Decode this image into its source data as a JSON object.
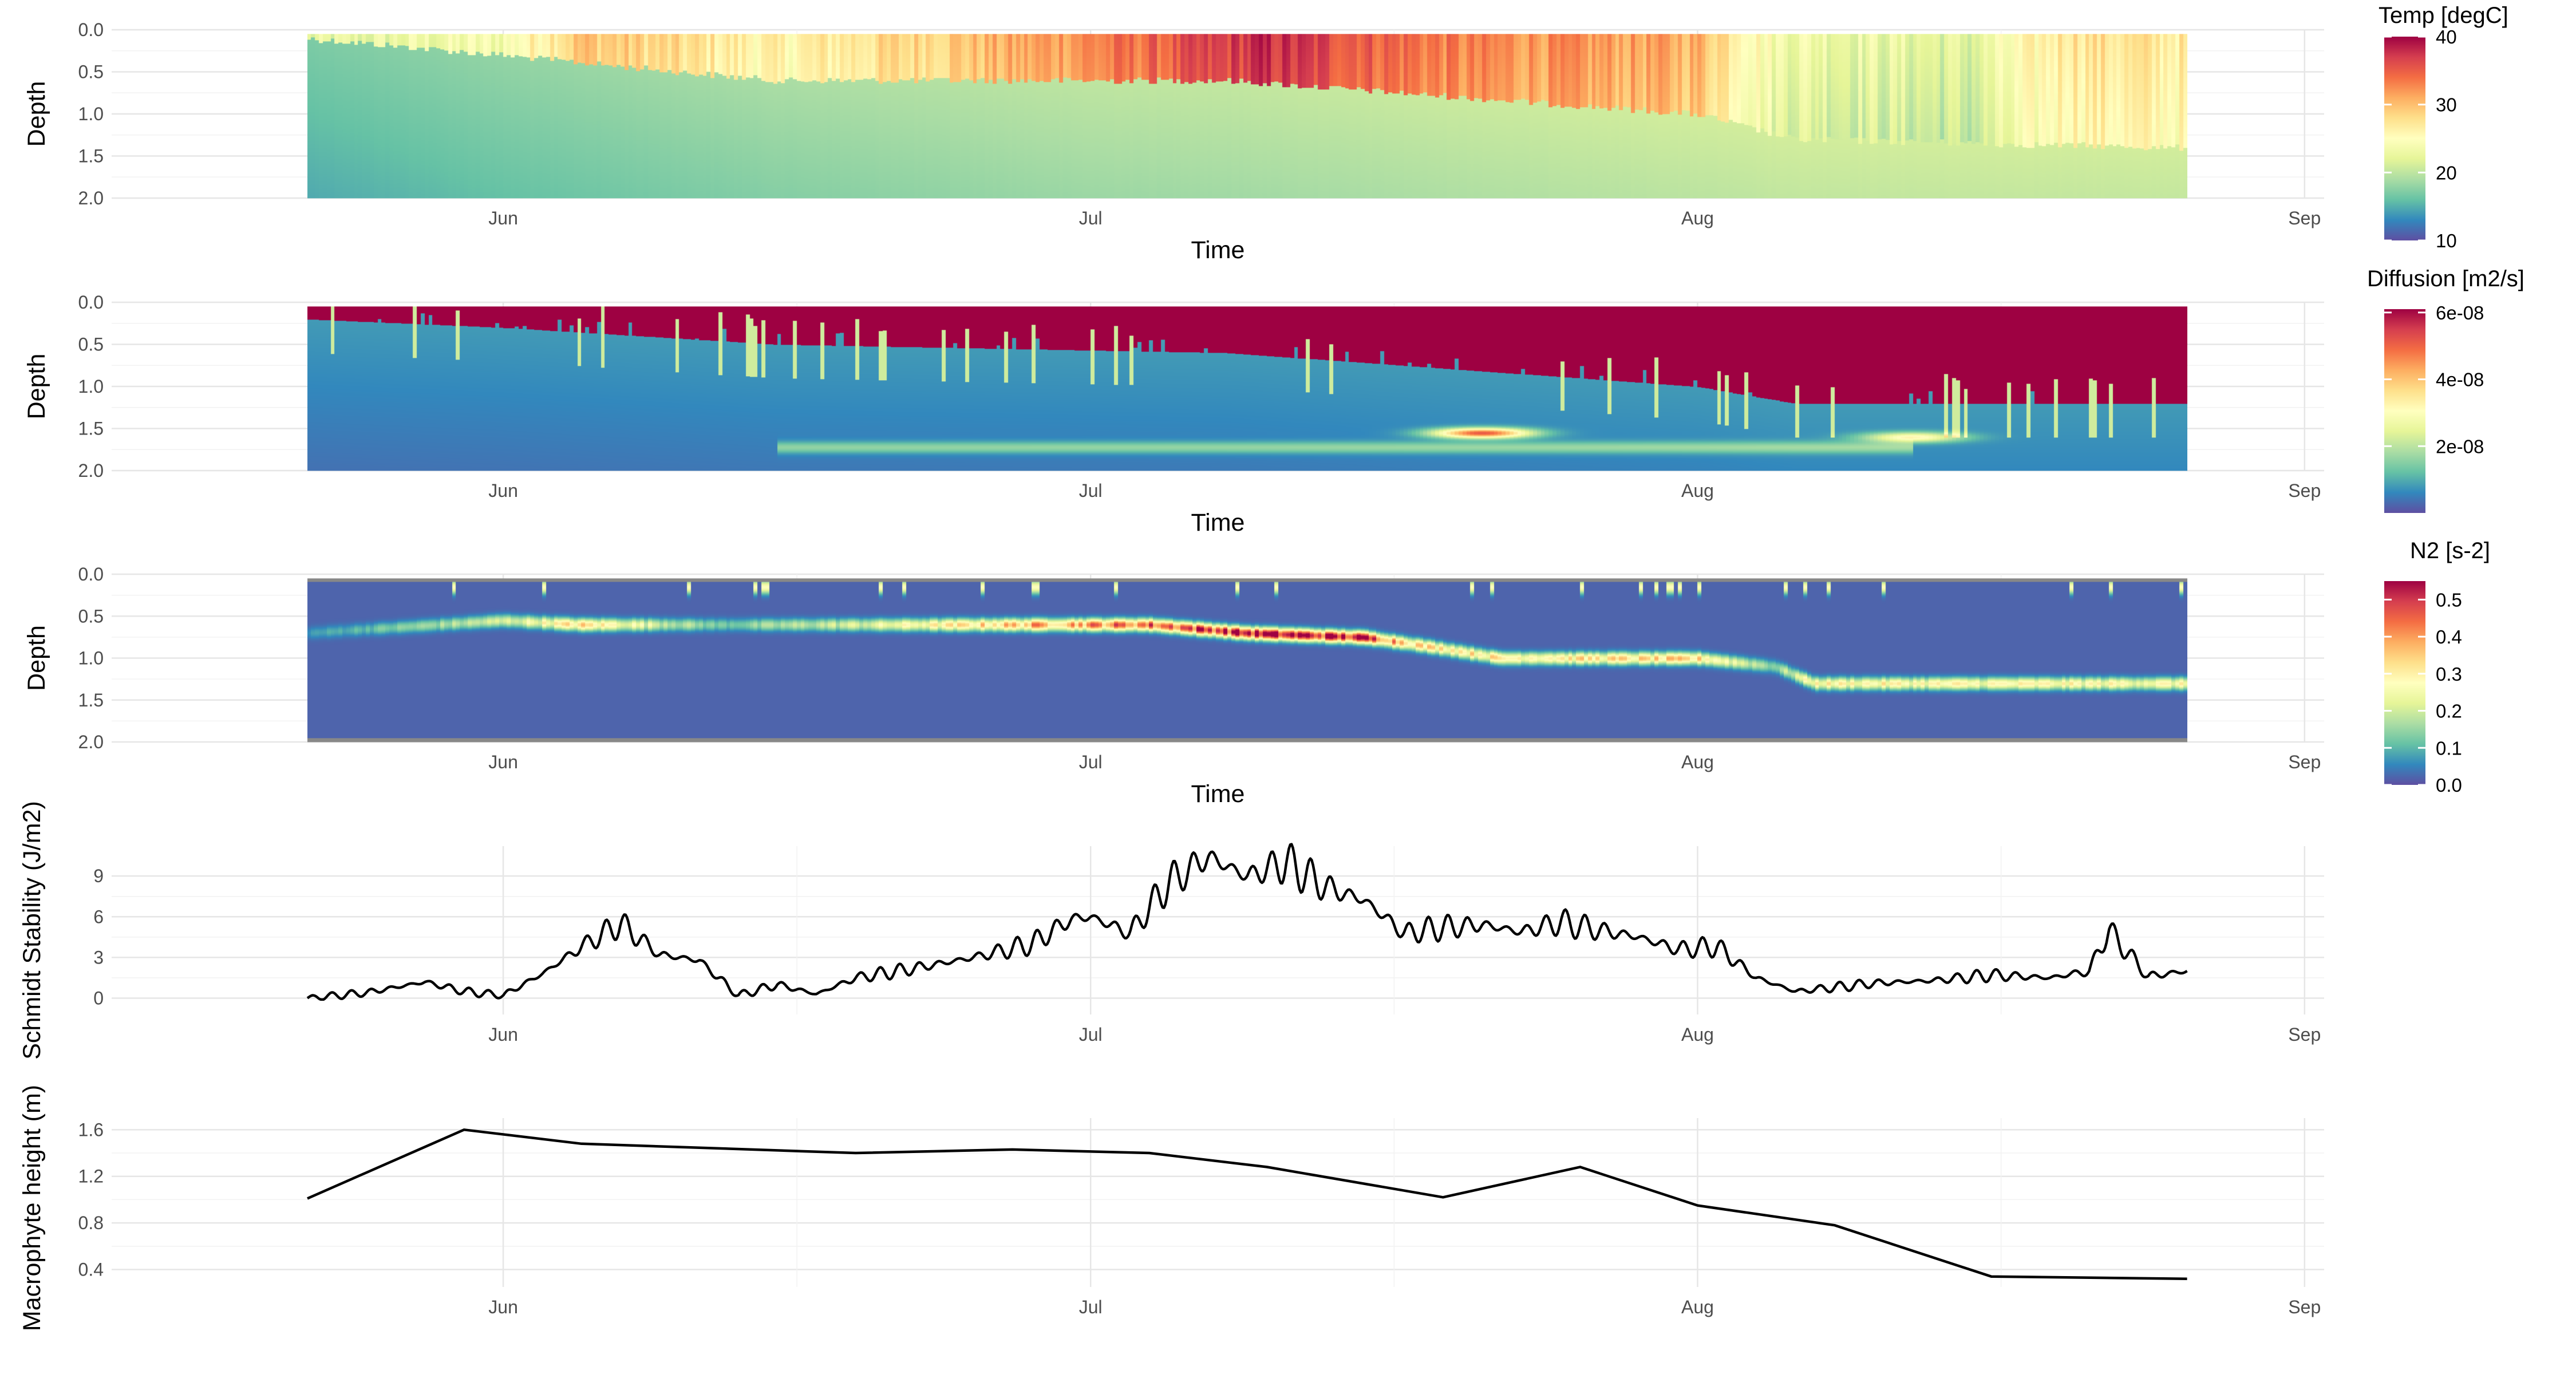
{
  "chart_data": [
    {
      "type": "heatmap",
      "xlabel": "Time",
      "ylabel": "Depth",
      "x_range": [
        "2021-05-12",
        "2021-09-02"
      ],
      "x_ticks": [
        {
          "date": "2021-06-01",
          "label": "Jun"
        },
        {
          "date": "2021-07-01",
          "label": "Jul"
        },
        {
          "date": "2021-08-01",
          "label": "Aug"
        },
        {
          "date": "2021-09-01",
          "label": "Sep"
        }
      ],
      "x_data_range": [
        "2021-05-22",
        "2021-08-26"
      ],
      "y_range": [
        0,
        2
      ],
      "y_reversed": true,
      "y_ticks": [
        "0.0",
        "0.5",
        "1.0",
        "1.5",
        "2.0"
      ],
      "legend_title": "Temp [degC]",
      "legend_ticks": [
        "40",
        "30",
        "20",
        "10"
      ],
      "legend_values": [
        40,
        30,
        20,
        10
      ],
      "color_range": [
        10,
        40
      ],
      "colormap": "Spectral",
      "grid": true,
      "surface_layer_bottom": [
        {
          "date": "2021-05-22",
          "depth": 0.1
        },
        {
          "date": "2021-06-01",
          "depth": 0.3
        },
        {
          "date": "2021-06-10",
          "depth": 0.5
        },
        {
          "date": "2021-06-15",
          "depth": 0.6
        },
        {
          "date": "2021-06-30",
          "depth": 0.6
        },
        {
          "date": "2021-07-08",
          "depth": 0.6
        },
        {
          "date": "2021-07-20",
          "depth": 0.8
        },
        {
          "date": "2021-08-01",
          "depth": 1.0
        },
        {
          "date": "2021-08-06",
          "depth": 1.3
        },
        {
          "date": "2021-08-26",
          "depth": 1.4
        }
      ],
      "surface_temperature": [
        {
          "date": "2021-05-22",
          "value": 22
        },
        {
          "date": "2021-06-01",
          "value": 24
        },
        {
          "date": "2021-06-05",
          "value": 30
        },
        {
          "date": "2021-06-15",
          "value": 26
        },
        {
          "date": "2021-06-25",
          "value": 30
        },
        {
          "date": "2021-07-05",
          "value": 35
        },
        {
          "date": "2021-07-10",
          "value": 38
        },
        {
          "date": "2021-07-20",
          "value": 33
        },
        {
          "date": "2021-08-01",
          "value": 31
        },
        {
          "date": "2021-08-05",
          "value": 24
        },
        {
          "date": "2021-08-15",
          "value": 22
        },
        {
          "date": "2021-08-20",
          "value": 28
        },
        {
          "date": "2021-08-26",
          "value": 27
        }
      ],
      "bottom_temperature": [
        {
          "date": "2021-05-22",
          "value": 17
        },
        {
          "date": "2021-06-01",
          "value": 18
        },
        {
          "date": "2021-06-15",
          "value": 19
        },
        {
          "date": "2021-07-01",
          "value": 20
        },
        {
          "date": "2021-08-01",
          "value": 21
        },
        {
          "date": "2021-08-26",
          "value": 21
        }
      ]
    },
    {
      "type": "heatmap",
      "xlabel": "Time",
      "ylabel": "Depth",
      "x_range": [
        "2021-05-12",
        "2021-09-02"
      ],
      "x_ticks": [
        {
          "date": "2021-06-01",
          "label": "Jun"
        },
        {
          "date": "2021-07-01",
          "label": "Jul"
        },
        {
          "date": "2021-08-01",
          "label": "Aug"
        },
        {
          "date": "2021-09-01",
          "label": "Sep"
        }
      ],
      "x_data_range": [
        "2021-05-22",
        "2021-08-26"
      ],
      "y_range": [
        0,
        2
      ],
      "y_reversed": true,
      "y_ticks": [
        "0.0",
        "0.5",
        "1.0",
        "1.5",
        "2.0"
      ],
      "legend_title": "Diffusion [m2/s]",
      "legend_ticks": [
        "6e-08",
        "4e-08",
        "2e-08"
      ],
      "legend_values": [
        6e-08,
        4e-08,
        2e-08
      ],
      "color_range": [
        0,
        6.1e-08
      ],
      "colormap": "Spectral",
      "grid": true,
      "mixed_layer_bottom": [
        {
          "date": "2021-05-22",
          "depth": 0.2
        },
        {
          "date": "2021-06-01",
          "depth": 0.3
        },
        {
          "date": "2021-06-15",
          "depth": 0.5
        },
        {
          "date": "2021-07-08",
          "depth": 0.6
        },
        {
          "date": "2021-07-20",
          "depth": 0.8
        },
        {
          "date": "2021-08-01",
          "depth": 1.0
        },
        {
          "date": "2021-08-06",
          "depth": 1.2
        },
        {
          "date": "2021-08-26",
          "depth": 1.2
        }
      ],
      "deep_diffusion": 8e-09,
      "hotspots": [
        {
          "date": "2021-07-21",
          "depth": 1.55,
          "value": 4.5e-08
        },
        {
          "date": "2021-08-12",
          "depth": 1.6,
          "value": 2.5e-08
        }
      ]
    },
    {
      "type": "heatmap",
      "xlabel": "Time",
      "ylabel": "Depth",
      "x_range": [
        "2021-05-12",
        "2021-09-02"
      ],
      "x_ticks": [
        {
          "date": "2021-06-01",
          "label": "Jun"
        },
        {
          "date": "2021-07-01",
          "label": "Jul"
        },
        {
          "date": "2021-08-01",
          "label": "Aug"
        },
        {
          "date": "2021-09-01",
          "label": "Sep"
        }
      ],
      "x_data_range": [
        "2021-05-22",
        "2021-08-26"
      ],
      "y_range": [
        0,
        2
      ],
      "y_reversed": true,
      "y_ticks": [
        "0.0",
        "0.5",
        "1.0",
        "1.5",
        "2.0"
      ],
      "legend_title": "N2 [s-2]",
      "legend_ticks": [
        "0.5",
        "0.4",
        "0.3",
        "0.2",
        "0.1",
        "0.0"
      ],
      "legend_values": [
        0.5,
        0.4,
        0.3,
        0.2,
        0.1,
        0.0
      ],
      "color_range": [
        0,
        0.55
      ],
      "colormap": "Spectral",
      "grid": true,
      "stratification_band": [
        {
          "date": "2021-05-22",
          "depth": 0.7,
          "value": 0.05
        },
        {
          "date": "2021-06-01",
          "depth": 0.55,
          "value": 0.18
        },
        {
          "date": "2021-06-05",
          "depth": 0.6,
          "value": 0.3
        },
        {
          "date": "2021-06-12",
          "depth": 0.6,
          "value": 0.1
        },
        {
          "date": "2021-06-20",
          "depth": 0.6,
          "value": 0.2
        },
        {
          "date": "2021-06-28",
          "depth": 0.6,
          "value": 0.35
        },
        {
          "date": "2021-07-04",
          "depth": 0.6,
          "value": 0.42
        },
        {
          "date": "2021-07-09",
          "depth": 0.7,
          "value": 0.52
        },
        {
          "date": "2021-07-15",
          "depth": 0.75,
          "value": 0.48
        },
        {
          "date": "2021-07-18",
          "depth": 0.85,
          "value": 0.3
        },
        {
          "date": "2021-07-22",
          "depth": 1.0,
          "value": 0.28
        },
        {
          "date": "2021-08-01",
          "depth": 1.0,
          "value": 0.3
        },
        {
          "date": "2021-08-05",
          "depth": 1.1,
          "value": 0.12
        },
        {
          "date": "2021-08-07",
          "depth": 1.3,
          "value": 0.26
        },
        {
          "date": "2021-08-26",
          "depth": 1.3,
          "value": 0.24
        }
      ]
    },
    {
      "type": "line",
      "xlabel": "",
      "ylabel": "Schmidt Stability (J/m2)",
      "x_range": [
        "2021-05-12",
        "2021-09-02"
      ],
      "x_ticks": [
        {
          "date": "2021-06-01",
          "label": "Jun"
        },
        {
          "date": "2021-07-01",
          "label": "Jul"
        },
        {
          "date": "2021-08-01",
          "label": "Aug"
        },
        {
          "date": "2021-09-01",
          "label": "Sep"
        }
      ],
      "y_range": [
        -1.2,
        11.2
      ],
      "y_ticks": [
        {
          "value": 0,
          "label": "0"
        },
        {
          "value": 3,
          "label": "3"
        },
        {
          "value": 6,
          "label": "6"
        },
        {
          "value": 9,
          "label": "9"
        }
      ],
      "grid": true,
      "series": [
        {
          "x": [
            "2021-05-22",
            "2021-05-25",
            "2021-05-28",
            "2021-05-30",
            "2021-06-01",
            "2021-06-03",
            "2021-06-05",
            "2021-06-07",
            "2021-06-09",
            "2021-06-11",
            "2021-06-13",
            "2021-06-15",
            "2021-06-17",
            "2021-06-19",
            "2021-06-22",
            "2021-06-25",
            "2021-06-28",
            "2021-06-30",
            "2021-07-01",
            "2021-07-03",
            "2021-07-05",
            "2021-07-07",
            "2021-07-09",
            "2021-07-11",
            "2021-07-13",
            "2021-07-15",
            "2021-07-17",
            "2021-07-19",
            "2021-07-21",
            "2021-07-23",
            "2021-07-25",
            "2021-07-27",
            "2021-07-29",
            "2021-07-31",
            "2021-08-02",
            "2021-08-04",
            "2021-08-06",
            "2021-08-08",
            "2021-08-10",
            "2021-08-13",
            "2021-08-16",
            "2021-08-19",
            "2021-08-21",
            "2021-08-22",
            "2021-08-24",
            "2021-08-26"
          ],
          "y": [
            0.0,
            0.4,
            1.2,
            0.5,
            0.2,
            1.8,
            3.8,
            5.5,
            3.2,
            2.8,
            0.2,
            1.0,
            0.3,
            1.5,
            2.2,
            3.0,
            4.0,
            5.8,
            6.0,
            4.8,
            8.5,
            10.4,
            9.0,
            10.0,
            8.2,
            7.2,
            4.8,
            5.2,
            5.4,
            4.9,
            5.6,
            5.0,
            4.5,
            3.6,
            3.8,
            1.5,
            0.5,
            0.8,
            1.1,
            1.3,
            1.7,
            1.5,
            2.0,
            5.0,
            1.6,
            2.0
          ]
        }
      ]
    },
    {
      "type": "line",
      "xlabel": "",
      "ylabel": "Macrophyte height (m)",
      "x_range": [
        "2021-05-12",
        "2021-09-02"
      ],
      "x_ticks": [
        {
          "date": "2021-06-01",
          "label": "Jun"
        },
        {
          "date": "2021-07-01",
          "label": "Jul"
        },
        {
          "date": "2021-08-01",
          "label": "Aug"
        },
        {
          "date": "2021-09-01",
          "label": "Sep"
        }
      ],
      "y_range": [
        0.25,
        1.7
      ],
      "y_ticks": [
        {
          "value": 0.4,
          "label": "0.4"
        },
        {
          "value": 0.8,
          "label": "0.8"
        },
        {
          "value": 1.2,
          "label": "1.2"
        },
        {
          "value": 1.6,
          "label": "1.6"
        }
      ],
      "grid": true,
      "series": [
        {
          "x": [
            "2021-05-22",
            "2021-05-30",
            "2021-06-05",
            "2021-06-19",
            "2021-06-27",
            "2021-07-04",
            "2021-07-10",
            "2021-07-19",
            "2021-07-26",
            "2021-08-01",
            "2021-08-08",
            "2021-08-16",
            "2021-08-26"
          ],
          "y": [
            1.01,
            1.6,
            1.48,
            1.4,
            1.43,
            1.4,
            1.28,
            1.02,
            1.28,
            0.95,
            0.78,
            0.34,
            0.32
          ]
        }
      ]
    }
  ]
}
